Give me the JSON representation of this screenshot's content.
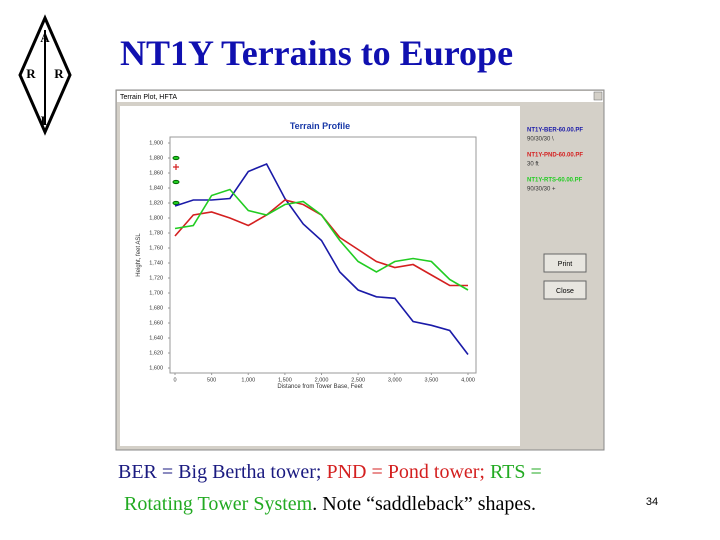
{
  "slide": {
    "title": "NT1Y Terrains to Europe",
    "logo_letters": [
      "A",
      "R",
      "R",
      "L"
    ],
    "caption": [
      "BER = Big Bertha tower;",
      "PND = Pond tower;",
      "RTS =",
      "Rotating Tower System",
      ". Note “saddleback” shapes."
    ],
    "page_number": "34"
  },
  "window": {
    "title": "Terrain Plot, HFTA",
    "buttons": [
      "Print",
      "Close"
    ],
    "legend_notes": [
      "90/30/30 \\",
      "30 ft",
      "90/30/30 +"
    ]
  },
  "chart_data": {
    "type": "line",
    "title": "Terrain Profile",
    "x_label": "Distance from Tower Base, Feet",
    "y_label": "Height, feet ASL",
    "x": [
      0,
      250,
      500,
      750,
      1000,
      1250,
      1500,
      1750,
      2000,
      2250,
      2500,
      2750,
      3000,
      3250,
      3500,
      3750,
      4000
    ],
    "series": [
      {
        "name": "NT1Y-BER-60.00.PF",
        "color": "#1a1aa8",
        "values": [
          1816,
          1824,
          1824,
          1826,
          1862,
          1872,
          1826,
          1792,
          1770,
          1728,
          1704,
          1695,
          1693,
          1662,
          1657,
          1650,
          1618
        ]
      },
      {
        "name": "NT1Y-PND-60.00.PF",
        "color": "#d42020",
        "values": [
          1776,
          1804,
          1808,
          1800,
          1790,
          1804,
          1824,
          1818,
          1804,
          1774,
          1758,
          1742,
          1734,
          1738,
          1724,
          1710,
          1710
        ]
      },
      {
        "name": "NT1Y-RTS-60.00.PF",
        "color": "#22cc22",
        "values": [
          1786,
          1790,
          1830,
          1838,
          1810,
          1804,
          1818,
          1822,
          1804,
          1770,
          1742,
          1728,
          1742,
          1746,
          1742,
          1718,
          1704
        ]
      }
    ],
    "xlim": [
      0,
      4000
    ],
    "ylim": [
      1600,
      1900
    ],
    "xticks": [
      0,
      500,
      {
        "value": 1000,
        "label": "1,000"
      },
      {
        "value": 1500,
        "label": "1,500"
      },
      {
        "value": 2000,
        "label": "2,000"
      },
      {
        "value": 2500,
        "label": "2,500"
      },
      {
        "value": 3000,
        "label": "3,000"
      },
      {
        "value": 3500,
        "label": "3,500"
      },
      {
        "value": 4000,
        "label": "4,000"
      }
    ],
    "yticks": [
      {
        "value": 1600,
        "label": "1,600"
      },
      {
        "value": 1620,
        "label": "1,620"
      },
      {
        "value": 1640,
        "label": "1,640"
      },
      {
        "value": 1660,
        "label": "1,660"
      },
      {
        "value": 1680,
        "label": "1,680"
      },
      {
        "value": 1700,
        "label": "1,700"
      },
      {
        "value": 1720,
        "label": "1,720"
      },
      {
        "value": 1740,
        "label": "1,740"
      },
      {
        "value": 1760,
        "label": "1,760"
      },
      {
        "value": 1780,
        "label": "1,780"
      },
      {
        "value": 1800,
        "label": "1,800"
      },
      {
        "value": 1820,
        "label": "1,820"
      },
      {
        "value": 1840,
        "label": "1,840"
      },
      {
        "value": 1860,
        "label": "1,860"
      },
      {
        "value": 1880,
        "label": "1,880"
      },
      {
        "value": 1900,
        "label": "1,900"
      }
    ],
    "grid": false
  }
}
